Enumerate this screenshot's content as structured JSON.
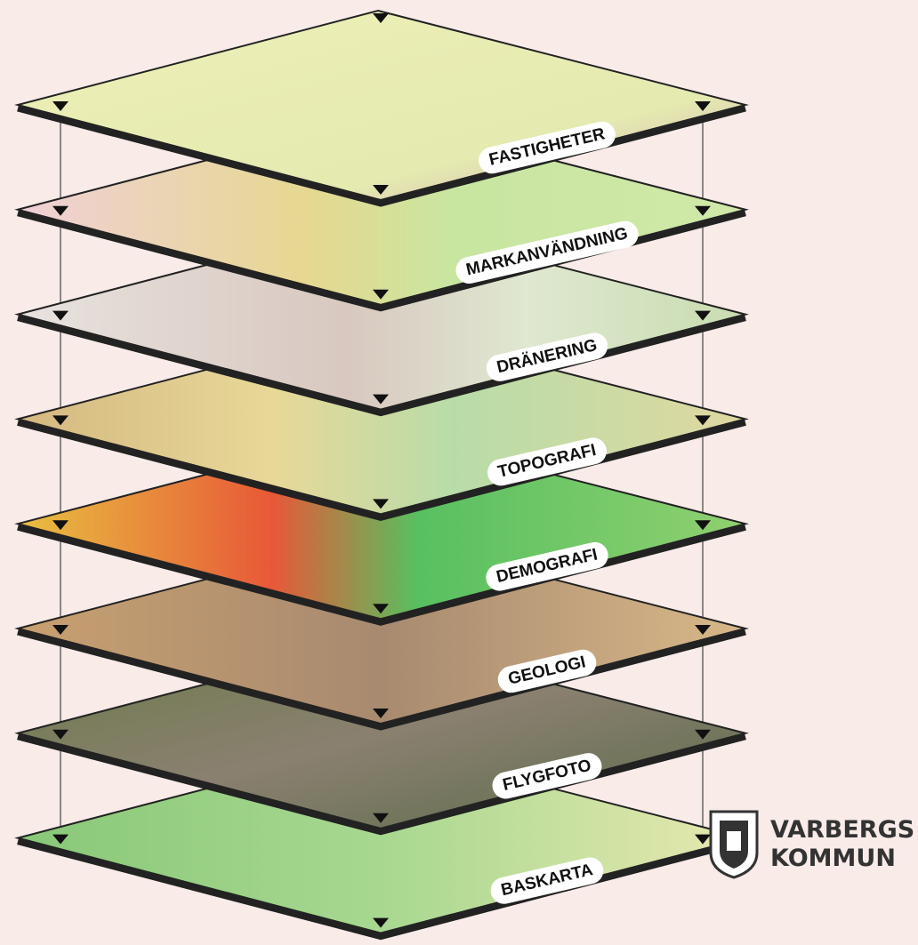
{
  "layers": [
    {
      "label": "FASTIGHETER"
    },
    {
      "label": "MARKANVÄNDNING"
    },
    {
      "label": "DRÄNERING"
    },
    {
      "label": "TOPOGRAFI"
    },
    {
      "label": "DEMOGRAFI"
    },
    {
      "label": "GEOLOGI"
    },
    {
      "label": "FLYGFOTO"
    },
    {
      "label": "BASKARTA"
    }
  ],
  "logo": {
    "line1": "VARBERGS",
    "line2": "KOMMUN"
  }
}
